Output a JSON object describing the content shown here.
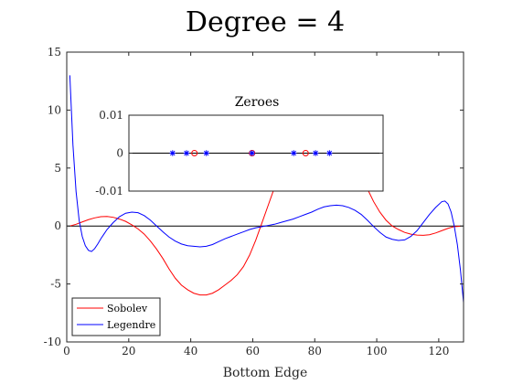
{
  "chart_data": [
    {
      "type": "line",
      "title": "Degree = 4",
      "xlabel": "Bottom Edge",
      "ylabel": "",
      "xlim": [
        0,
        128
      ],
      "ylim": [
        -10,
        15
      ],
      "xticks": [
        0,
        20,
        40,
        60,
        80,
        100,
        120
      ],
      "yticks": [
        -10,
        -5,
        0,
        5,
        10,
        15
      ],
      "grid": false,
      "legend": {
        "location": "bottom-left",
        "entries": [
          "Sobolev",
          "Legendre"
        ]
      },
      "series": [
        {
          "name": "Sobolev",
          "color": "#ff0000",
          "x": [
            1,
            3,
            5,
            7,
            9,
            11,
            13,
            15,
            17,
            19,
            21,
            23,
            25,
            27,
            29,
            31,
            33,
            35,
            37,
            39,
            41,
            43,
            45,
            47,
            49,
            51,
            53,
            55,
            57,
            59,
            61,
            63,
            65,
            67,
            69,
            71,
            73,
            75,
            77,
            79,
            81,
            83,
            85,
            87,
            89,
            91,
            93,
            95,
            97,
            99,
            101,
            103,
            105,
            107,
            109,
            111,
            113,
            115,
            117,
            119,
            121,
            123,
            125,
            127
          ],
          "y": [
            0.0,
            0.15,
            0.35,
            0.55,
            0.7,
            0.8,
            0.82,
            0.75,
            0.6,
            0.4,
            0.1,
            -0.25,
            -0.7,
            -1.3,
            -2.0,
            -2.8,
            -3.7,
            -4.5,
            -5.1,
            -5.5,
            -5.8,
            -5.95,
            -5.95,
            -5.8,
            -5.5,
            -5.1,
            -4.7,
            -4.2,
            -3.5,
            -2.5,
            -1.2,
            0.3,
            1.8,
            3.3,
            4.6,
            5.8,
            6.8,
            7.6,
            8.2,
            8.6,
            8.8,
            8.9,
            8.7,
            8.3,
            7.6,
            6.7,
            5.6,
            4.4,
            3.2,
            2.1,
            1.2,
            0.5,
            0.0,
            -0.3,
            -0.55,
            -0.7,
            -0.78,
            -0.8,
            -0.75,
            -0.6,
            -0.4,
            -0.2,
            -0.05,
            -0.02
          ]
        },
        {
          "name": "Legendre",
          "color": "#0000ff",
          "x": [
            1,
            2,
            3,
            4,
            5,
            6,
            7,
            8,
            9,
            10,
            11,
            12,
            13,
            15,
            17,
            19,
            21,
            23,
            25,
            27,
            29,
            31,
            33,
            35,
            37,
            39,
            41,
            43,
            45,
            47,
            49,
            51,
            53,
            55,
            57,
            59,
            61,
            63,
            65,
            67,
            69,
            71,
            73,
            75,
            77,
            79,
            81,
            83,
            85,
            87,
            89,
            91,
            93,
            95,
            97,
            99,
            101,
            103,
            105,
            107,
            109,
            111,
            113,
            115,
            117,
            119,
            121,
            122,
            123,
            124,
            125,
            126,
            127,
            128
          ],
          "y": [
            13.0,
            7.0,
            3.0,
            0.5,
            -0.9,
            -1.7,
            -2.1,
            -2.2,
            -1.95,
            -1.55,
            -1.1,
            -0.7,
            -0.3,
            0.3,
            0.8,
            1.1,
            1.2,
            1.15,
            0.9,
            0.5,
            0.0,
            -0.5,
            -0.95,
            -1.3,
            -1.55,
            -1.7,
            -1.75,
            -1.8,
            -1.75,
            -1.6,
            -1.35,
            -1.1,
            -0.9,
            -0.7,
            -0.5,
            -0.3,
            -0.15,
            -0.05,
            0.05,
            0.15,
            0.3,
            0.45,
            0.6,
            0.8,
            1.0,
            1.2,
            1.45,
            1.65,
            1.75,
            1.8,
            1.75,
            1.6,
            1.35,
            1.0,
            0.5,
            -0.05,
            -0.55,
            -0.95,
            -1.15,
            -1.25,
            -1.2,
            -0.9,
            -0.4,
            0.3,
            1.0,
            1.6,
            2.1,
            2.15,
            1.9,
            1.2,
            0.0,
            -1.6,
            -3.8,
            -6.6
          ]
        }
      ]
    },
    {
      "type": "scatter",
      "title": "Zeroes",
      "xlabel": "",
      "ylabel": "",
      "xlim": [
        0,
        128
      ],
      "ylim": [
        -0.01,
        0.01
      ],
      "yticks": [
        -0.01,
        0,
        0.01
      ],
      "ytick_labels": [
        "-0.01",
        "0",
        "0.01"
      ],
      "grid": false,
      "series": [
        {
          "name": "Sobolev",
          "marker": "circle",
          "color": "#ff0000",
          "x": [
            33,
            62,
            89
          ],
          "y": [
            0,
            0,
            0
          ]
        },
        {
          "name": "Legendre",
          "marker": "star",
          "color": "#0000ff",
          "x": [
            22,
            29,
            39,
            62,
            83,
            94,
            101
          ],
          "y": [
            0,
            0,
            0,
            0,
            0,
            0,
            0
          ]
        }
      ]
    }
  ]
}
